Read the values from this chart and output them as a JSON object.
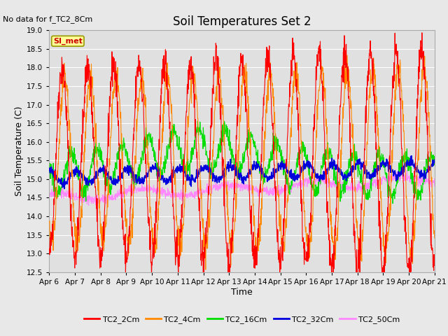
{
  "title": "Soil Temperatures Set 2",
  "xlabel": "Time",
  "ylabel": "Soil Temperature (C)",
  "no_data_text": "No data for f_TC2_8Cm",
  "legend_label_text": "SI_met",
  "ylim": [
    12.5,
    19.0
  ],
  "yticks": [
    12.5,
    13.0,
    13.5,
    14.0,
    14.5,
    15.0,
    15.5,
    16.0,
    16.5,
    17.0,
    17.5,
    18.0,
    18.5,
    19.0
  ],
  "x_tick_labels": [
    "Apr 6",
    "Apr 7",
    "Apr 8",
    "Apr 9",
    "Apr 10",
    "Apr 11",
    "Apr 12",
    "Apr 13",
    "Apr 14",
    "Apr 15",
    "Apr 16",
    "Apr 17",
    "Apr 18",
    "Apr 19",
    "Apr 20",
    "Apr 21"
  ],
  "series_colors": {
    "TC2_2Cm": "#ff0000",
    "TC2_4Cm": "#ff8800",
    "TC2_16Cm": "#00dd00",
    "TC2_32Cm": "#0000dd",
    "TC2_50Cm": "#ff88ff"
  },
  "series_labels": [
    "TC2_2Cm",
    "TC2_4Cm",
    "TC2_16Cm",
    "TC2_32Cm",
    "TC2_50Cm"
  ],
  "fig_bg_color": "#e8e8e8",
  "plot_bg_color": "#e0e0e0",
  "grid_color": "#ffffff",
  "title_fontsize": 12,
  "axis_label_fontsize": 9,
  "tick_fontsize": 7.5,
  "legend_fontsize": 8,
  "no_data_fontsize": 8,
  "si_met_fontsize": 8
}
